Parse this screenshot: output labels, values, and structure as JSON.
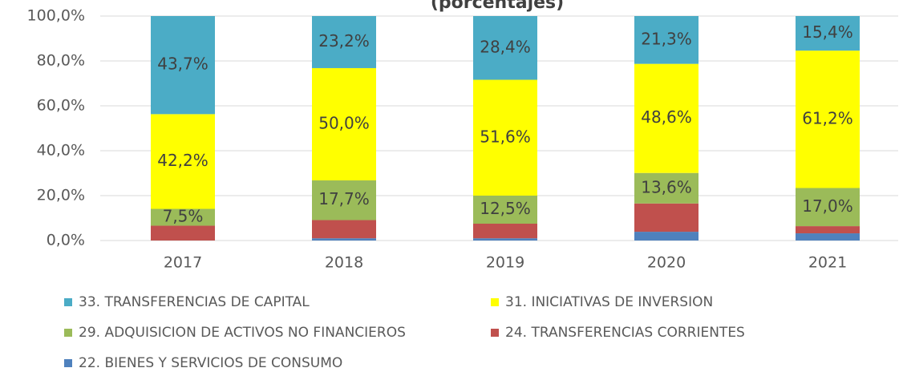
{
  "chart_data": {
    "type": "stacked_bar",
    "title": "(porcentajes)",
    "categories": [
      "2017",
      "2018",
      "2019",
      "2020",
      "2021"
    ],
    "series": [
      {
        "name": "22. BIENES Y SERVICIOS DE CONSUMO",
        "color": "#4f81bd",
        "values": [
          0,
          1,
          1,
          3.9,
          3.2
        ]
      },
      {
        "name": "24. TRANSFERENCIAS CORRIENTES",
        "color": "#c0504d",
        "values": [
          6.6,
          8.1,
          6.5,
          12.6,
          3.2
        ]
      },
      {
        "name": "29. ADQUISICION DE ACTIVOS NO FINANCIEROS",
        "color": "#9bbb59",
        "values": [
          7.5,
          17.7,
          12.5,
          13.6,
          17.0
        ],
        "value_labels": [
          "7,5%",
          "17,7%",
          "12,5%",
          "13,6%",
          "17,0%"
        ]
      },
      {
        "name": "31. INICIATIVAS DE INVERSION",
        "color": "#ffff00",
        "values": [
          42.2,
          50.0,
          51.6,
          48.6,
          61.2
        ],
        "value_labels": [
          "42,2%",
          "50,0%",
          "51,6%",
          "48,6%",
          "61,2%"
        ]
      },
      {
        "name": "33. TRANSFERENCIAS DE CAPITAL",
        "color": "#4bacc6",
        "values": [
          43.7,
          23.2,
          28.4,
          21.3,
          15.4
        ],
        "value_labels": [
          "43,7%",
          "23,2%",
          "28,4%",
          "21,3%",
          "15,4%"
        ]
      }
    ],
    "ylim": [
      0,
      100
    ],
    "yticks": [
      {
        "value": 0,
        "label": "0,0%"
      },
      {
        "value": 20,
        "label": "20,0%"
      },
      {
        "value": 40,
        "label": "40,0%"
      },
      {
        "value": 60,
        "label": "60,0%"
      },
      {
        "value": 80,
        "label": "80,0%"
      },
      {
        "value": 100,
        "label": "100,0%"
      }
    ],
    "grid": true,
    "legend": "bottom"
  }
}
